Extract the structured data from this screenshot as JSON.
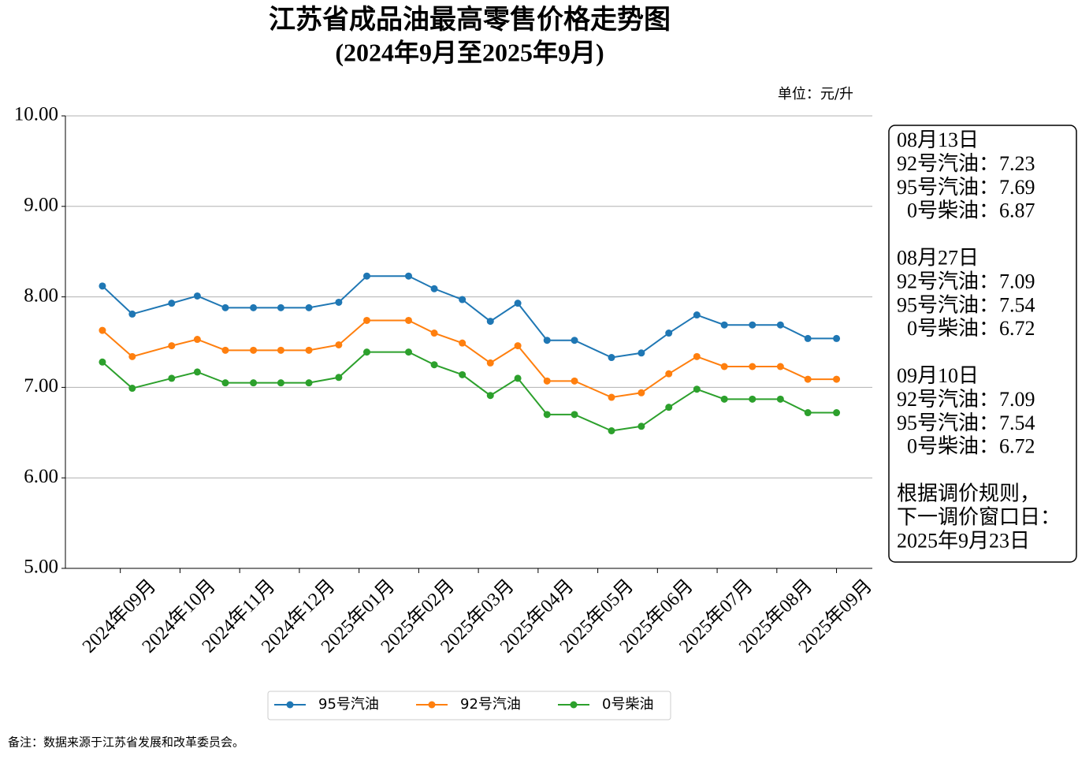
{
  "chart_data": {
    "type": "line",
    "title": "江苏省成品油最高零售价格走势图",
    "subtitle": "(2024年9月至2025年9月)",
    "unit_label": "单位：元/升",
    "footnote": "备注：数据来源于江苏省发展和改革委员会。",
    "x": [
      -0.3,
      0.2,
      0.86,
      1.29,
      1.76,
      2.23,
      2.69,
      3.16,
      3.66,
      4.13,
      4.83,
      5.26,
      5.73,
      6.2,
      6.66,
      7.15,
      7.61,
      8.23,
      8.73,
      9.19,
      9.66,
      10.12,
      10.59,
      11.06,
      11.52,
      12.0
    ],
    "xlim": [
      -0.92,
      12.6
    ],
    "xticks": [
      {
        "value": 0,
        "label": "2024年09月"
      },
      {
        "value": 1,
        "label": "2024年10月"
      },
      {
        "value": 2,
        "label": "2024年11月"
      },
      {
        "value": 3,
        "label": "2024年12月"
      },
      {
        "value": 4,
        "label": "2025年01月"
      },
      {
        "value": 5,
        "label": "2025年02月"
      },
      {
        "value": 6,
        "label": "2025年03月"
      },
      {
        "value": 7,
        "label": "2025年04月"
      },
      {
        "value": 8,
        "label": "2025年05月"
      },
      {
        "value": 9,
        "label": "2025年06月"
      },
      {
        "value": 10,
        "label": "2025年07月"
      },
      {
        "value": 11,
        "label": "2025年08月"
      },
      {
        "value": 12,
        "label": "2025年09月"
      }
    ],
    "ylim": [
      5,
      10
    ],
    "yticks": [
      {
        "value": 5,
        "label": "5.00"
      },
      {
        "value": 6,
        "label": "6.00"
      },
      {
        "value": 7,
        "label": "7.00"
      },
      {
        "value": 8,
        "label": "8.00"
      },
      {
        "value": 9,
        "label": "9.00"
      },
      {
        "value": 10,
        "label": "10.00"
      }
    ],
    "grid": true,
    "legend": "bottom",
    "series": [
      {
        "name": "95号汽油",
        "color": "#1f77b4",
        "values": [
          8.12,
          7.81,
          7.93,
          8.01,
          7.88,
          7.88,
          7.88,
          7.88,
          7.94,
          8.23,
          8.23,
          8.09,
          7.97,
          7.73,
          7.93,
          7.52,
          7.52,
          7.33,
          7.38,
          7.6,
          7.8,
          7.69,
          7.69,
          7.69,
          7.54,
          7.54
        ]
      },
      {
        "name": "92号汽油",
        "color": "#ff7f0e",
        "values": [
          7.63,
          7.34,
          7.46,
          7.53,
          7.41,
          7.41,
          7.41,
          7.41,
          7.47,
          7.74,
          7.74,
          7.6,
          7.49,
          7.27,
          7.46,
          7.07,
          7.07,
          6.89,
          6.94,
          7.15,
          7.34,
          7.23,
          7.23,
          7.23,
          7.09,
          7.09
        ]
      },
      {
        "name": "0号柴油",
        "color": "#2ca02c",
        "values": [
          7.28,
          6.99,
          7.1,
          7.17,
          7.05,
          7.05,
          7.05,
          7.05,
          7.11,
          7.39,
          7.39,
          7.25,
          7.14,
          6.91,
          7.1,
          6.7,
          6.7,
          6.52,
          6.57,
          6.78,
          6.98,
          6.87,
          6.87,
          6.87,
          6.72,
          6.72
        ]
      }
    ],
    "annotation": [
      "08月13日",
      "92号汽油：7.23",
      "95号汽油：7.69",
      "  0号柴油：6.87",
      "",
      "08月27日",
      "92号汽油：7.09",
      "95号汽油：7.54",
      "  0号柴油：6.72",
      "",
      "09月10日",
      "92号汽油：7.09",
      "95号汽油：7.54",
      "  0号柴油：6.72",
      "",
      "根据调价规则，",
      "下一调价窗口日：",
      "2025年9月23日"
    ]
  }
}
